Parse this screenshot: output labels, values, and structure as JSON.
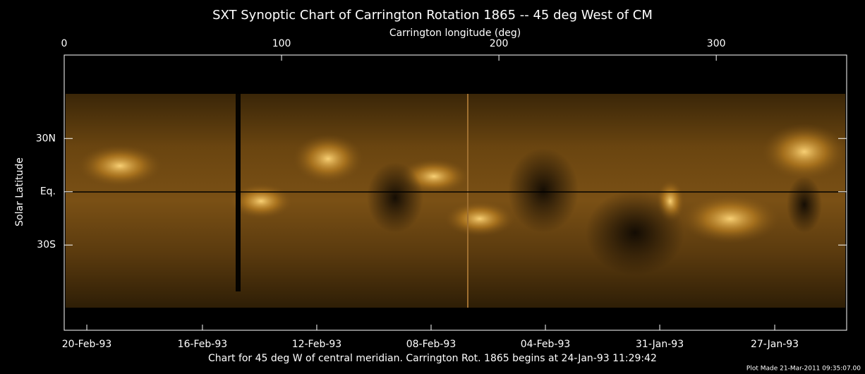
{
  "chart_data": {
    "type": "synoptic-map",
    "title": "SXT Synoptic Chart of Carrington Rotation 1865 -- 45 deg West of CM",
    "x_label": "Carrington longitude (deg)",
    "y_label": "Solar Latitude",
    "xlim": [
      0,
      360
    ],
    "xticks": [
      0,
      100,
      200,
      300
    ],
    "ylim": [
      -78,
      77
    ],
    "yticks": [
      {
        "value": 30,
        "label": "30N"
      },
      {
        "value": 0,
        "label": "Eq."
      },
      {
        "value": -30,
        "label": "30S"
      }
    ],
    "x2ticks": [
      {
        "value": 10.4,
        "label": "20-Feb-93"
      },
      {
        "value": 63.6,
        "label": "16-Feb-93"
      },
      {
        "value": 116.2,
        "label": "12-Feb-93"
      },
      {
        "value": 168.8,
        "label": "08-Feb-93"
      },
      {
        "value": 221.4,
        "label": "04-Feb-93"
      },
      {
        "value": 274.0,
        "label": "31-Jan-93"
      },
      {
        "value": 326.9,
        "label": "27-Jan-93"
      }
    ],
    "caption": "Chart for 45 deg W of central meridian.  Carrington Rot. 1865 begins at 24-Jan-93 11:29:42",
    "plot_note": "Plot Made 21-Mar-2011 09:35:07.00"
  }
}
